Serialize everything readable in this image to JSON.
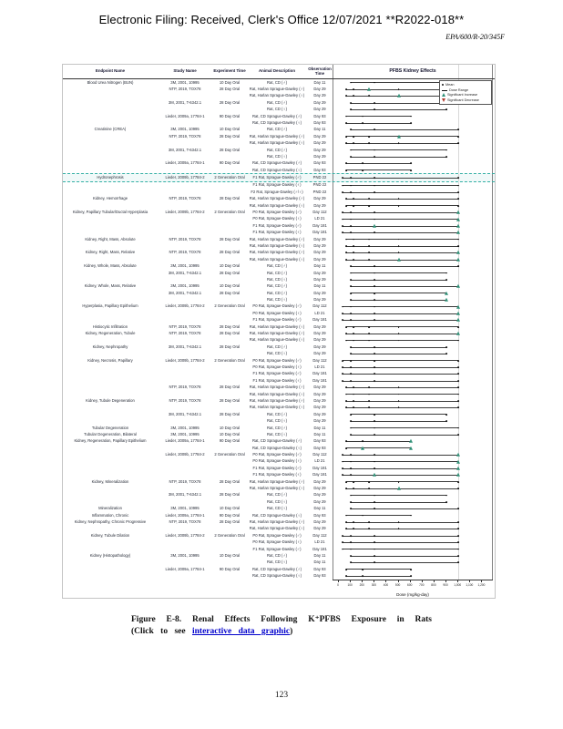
{
  "page": {
    "filing_header": "Electronic Filing: Received, Clerk's Office 12/07/2021 **R2022-018**",
    "doc_id": "EPA/600/R-20/345F",
    "page_number": "123"
  },
  "caption": {
    "line1": "Figure E-8. Renal Effects Following K⁺PFBS Exposure in Rats",
    "prefix": "(Click to see",
    "link_text": "interactive data graphic",
    "suffix": ")"
  },
  "chart_data": {
    "type": "scatter",
    "title": "PFBS Kidney Effects",
    "xlabel": "Dose (mg/kg-day)",
    "xlim": [
      0,
      1250
    ],
    "x_tick_values": [
      0,
      100,
      200,
      300,
      400,
      500,
      600,
      700,
      800,
      900,
      1000,
      1100,
      1200
    ],
    "x_tick_labels": [
      "0",
      "100",
      "200",
      "300",
      "400",
      "500",
      "600",
      "700",
      "800",
      "900",
      "1,000",
      "1,100",
      "1,200"
    ],
    "colors": {
      "increase": "#2f9077",
      "decrease": "#b03a2e",
      "mean": "#111111",
      "highlight": "#35b0a5"
    },
    "legend": [
      {
        "label": "Mean",
        "marker": "dot",
        "color": "#111111"
      },
      {
        "label": "Dose Range",
        "marker": "line",
        "color": "#111111"
      },
      {
        "label": "Significant Increase",
        "marker": "triangle-up",
        "color": "#2f9077"
      },
      {
        "label": "Significant Decrease",
        "marker": "triangle-down",
        "color": "#b03a2e"
      }
    ],
    "columns": [
      "Endpoint Name",
      "Study Name",
      "Experiment Time",
      "Animal Description",
      "Observation Time"
    ],
    "rows": [
      [
        "Blood Urea Nitrogen (BUN)",
        "3M, 2001, 10995",
        "10 Day Oral",
        "Rat, CD (♂)",
        "Day 11",
        [
          100,
          300,
          1000
        ],
        [],
        []
      ],
      [
        "",
        "NTP, 2019, TOX78",
        "28 Day Oral",
        "Rat, Harlan Sprague-Dawley (♂)",
        "Day 29",
        [
          62.6,
          125,
          250,
          500,
          1000
        ],
        [
          250
        ],
        []
      ],
      [
        "",
        "",
        "",
        "Rat, Harlan Sprague-Dawley (♀)",
        "Day 29",
        [
          62.6,
          125,
          250,
          500,
          1000
        ],
        [
          500
        ],
        []
      ],
      [
        "",
        "3M, 2001, T-6342.1",
        "28 Day Oral",
        "Rat, CD (♂)",
        "Day 29",
        [
          100,
          300,
          900
        ],
        [],
        []
      ],
      [
        "",
        "",
        "",
        "Rat, CD (♀)",
        "Day 29",
        [
          100,
          300,
          900
        ],
        [],
        []
      ],
      [
        "",
        "Lieder, 2009a, 17784-1",
        "90 Day Oral",
        "Rat, CD Sprague-Dawley (♂)",
        "Day 93",
        [
          60,
          200,
          600
        ],
        [],
        []
      ],
      [
        "",
        "",
        "",
        "Rat, CD Sprague-Dawley (♀)",
        "Day 93",
        [
          60,
          200,
          600
        ],
        [],
        []
      ],
      [
        "Creatinine (CREA)",
        "3M, 2001, 10995",
        "10 Day Oral",
        "Rat, CD (♂)",
        "Day 11",
        [
          100,
          300,
          1000
        ],
        [],
        []
      ],
      [
        "",
        "NTP, 2019, TOX78",
        "28 Day Oral",
        "Rat, Harlan Sprague-Dawley (♂)",
        "Day 29",
        [
          62.6,
          125,
          250,
          500,
          1000
        ],
        [
          500
        ],
        []
      ],
      [
        "",
        "",
        "",
        "Rat, Harlan Sprague-Dawley (♀)",
        "Day 29",
        [
          62.6,
          125,
          250,
          500,
          1000
        ],
        [],
        []
      ],
      [
        "",
        "3M, 2001, T-6342.1",
        "28 Day Oral",
        "Rat, CD (♂)",
        "Day 29",
        [
          100,
          300,
          900
        ],
        [],
        []
      ],
      [
        "",
        "",
        "",
        "Rat, CD (♀)",
        "Day 29",
        [
          100,
          300,
          900
        ],
        [],
        []
      ],
      [
        "",
        "Lieder, 2009a, 17784-1",
        "90 Day Oral",
        "Rat, CD Sprague-Dawley (♂)",
        "Day 93",
        [
          60,
          200,
          600
        ],
        [],
        []
      ],
      [
        "",
        "",
        "",
        "Rat, CD Sprague-Dawley (♀)",
        "Day 93",
        [
          60,
          200,
          600
        ],
        [],
        []
      ],
      [
        "Hydronephrosis",
        "Lieder, 2009b, 17784-2",
        "2 Generation Oral",
        "F1 Rat, Sprague-Dawley (♂)",
        "PND 22",
        [
          30,
          100,
          300,
          1000
        ],
        [],
        [],
        1
      ],
      [
        "",
        "",
        "",
        "F1 Rat, Sprague-Dawley (♀)",
        "PND 22",
        [
          30,
          100,
          300,
          1000
        ],
        [],
        []
      ],
      [
        "",
        "",
        "",
        "F2 Rat, Sprague-Dawley (♂/♀)",
        "PND 22",
        [
          30,
          100,
          300,
          1000
        ],
        [],
        []
      ],
      [
        "Kidney, Hemorrhage",
        "NTP, 2019, TOX78",
        "28 Day Oral",
        "Rat, Harlan Sprague-Dawley (♂)",
        "Day 29",
        [
          62.6,
          125,
          250,
          500,
          1000
        ],
        [],
        []
      ],
      [
        "",
        "",
        "",
        "Rat, Harlan Sprague-Dawley (♀)",
        "Day 29",
        [
          62.6,
          125,
          250,
          500,
          1000
        ],
        [],
        []
      ],
      [
        "Kidney, Papillary Tubular/Ductal Hyperplasia",
        "Lieder, 2009b, 17784-2",
        "2 Generation Oral",
        "P0 Rat, Sprague-Dawley (♂)",
        "Day 112",
        [
          30,
          100,
          300,
          1000
        ],
        [
          1000
        ],
        []
      ],
      [
        "",
        "",
        "",
        "P0 Rat, Sprague-Dawley (♀)",
        "LD 21",
        [
          30,
          100,
          300,
          1000
        ],
        [
          1000
        ],
        []
      ],
      [
        "",
        "",
        "",
        "F1 Rat, Sprague-Dawley (♂)",
        "Day 181",
        [
          30,
          100,
          300,
          1000
        ],
        [
          300,
          1000
        ],
        []
      ],
      [
        "",
        "",
        "",
        "F1 Rat, Sprague-Dawley (♀)",
        "Day 181",
        [
          30,
          100,
          300,
          1000
        ],
        [
          1000
        ],
        []
      ],
      [
        "Kidney, Right, Mass, Absolute",
        "NTP, 2019, TOX78",
        "28 Day Oral",
        "Rat, Harlan Sprague-Dawley (♂)",
        "Day 29",
        [
          62.6,
          125,
          250,
          500,
          1000
        ],
        [],
        []
      ],
      [
        "",
        "",
        "",
        "Rat, Harlan Sprague-Dawley (♀)",
        "Day 29",
        [
          62.6,
          125,
          250,
          500,
          1000
        ],
        [],
        []
      ],
      [
        "Kidney, Right, Mass, Relative",
        "NTP, 2019, TOX78",
        "28 Day Oral",
        "Rat, Harlan Sprague-Dawley (♂)",
        "Day 29",
        [
          62.6,
          125,
          250,
          500,
          1000
        ],
        [
          1000
        ],
        []
      ],
      [
        "",
        "",
        "",
        "Rat, Harlan Sprague-Dawley (♀)",
        "Day 29",
        [
          62.6,
          125,
          250,
          500,
          1000
        ],
        [
          500,
          1000
        ],
        []
      ],
      [
        "Kidney, Whole, Mass, Absolute",
        "3M, 2001, 10995",
        "10 Day Oral",
        "Rat, CD (♂)",
        "Day 11",
        [
          100,
          300,
          1000
        ],
        [],
        []
      ],
      [
        "",
        "3M, 2001, T-6342.1",
        "28 Day Oral",
        "Rat, CD (♂)",
        "Day 29",
        [
          100,
          300,
          900
        ],
        [],
        []
      ],
      [
        "",
        "",
        "",
        "Rat, CD (♀)",
        "Day 29",
        [
          100,
          300,
          900
        ],
        [],
        []
      ],
      [
        "Kidney, Whole, Mass, Relative",
        "3M, 2001, 10995",
        "10 Day Oral",
        "Rat, CD (♂)",
        "Day 11",
        [
          100,
          300,
          1000
        ],
        [
          1000
        ],
        []
      ],
      [
        "",
        "3M, 2001, T-6342.1",
        "28 Day Oral",
        "Rat, CD (♂)",
        "Day 29",
        [
          100,
          300,
          900
        ],
        [
          900
        ],
        []
      ],
      [
        "",
        "",
        "",
        "Rat, CD (♀)",
        "Day 29",
        [
          100,
          300,
          900
        ],
        [
          900
        ],
        []
      ],
      [
        "Hyperplasia, Papillary Epithelium",
        "Lieder, 2009b, 17784-2",
        "2 Generation Oral",
        "P0 Rat, Sprague-Dawley (♂)",
        "Day 112",
        [
          30,
          100,
          300,
          1000
        ],
        [
          1000
        ],
        []
      ],
      [
        "",
        "",
        "",
        "P0 Rat, Sprague-Dawley (♀)",
        "LD 21",
        [
          30,
          100,
          300,
          1000
        ],
        [
          1000
        ],
        []
      ],
      [
        "",
        "",
        "",
        "F1 Rat, Sprague-Dawley (♂)",
        "Day 181",
        [
          30,
          100,
          300,
          1000
        ],
        [
          1000
        ],
        []
      ],
      [
        "Histiocytic Infiltration",
        "NTP, 2019, TOX78",
        "28 Day Oral",
        "Rat, Harlan Sprague-Dawley (♀)",
        "Day 29",
        [
          62.6,
          125,
          250,
          500,
          1000
        ],
        [],
        []
      ],
      [
        "Kidney, Regeneration, Tubule",
        "NTP, 2019, TOX78",
        "28 Day Oral",
        "Rat, Harlan Sprague-Dawley (♂)",
        "Day 29",
        [
          62.6,
          125,
          250,
          500,
          1000
        ],
        [
          1000
        ],
        []
      ],
      [
        "",
        "",
        "",
        "Rat, Harlan Sprague-Dawley (♀)",
        "Day 29",
        [
          62.6,
          125,
          250,
          500,
          1000
        ],
        [],
        []
      ],
      [
        "Kidney, Nephropathy",
        "3M, 2001, T-6342.1",
        "28 Day Oral",
        "Rat, CD (♂)",
        "Day 29",
        [
          100,
          300,
          900
        ],
        [],
        []
      ],
      [
        "",
        "",
        "",
        "Rat, CD (♀)",
        "Day 29",
        [
          100,
          300,
          900
        ],
        [],
        []
      ],
      [
        "Kidney, Necrosis, Papillary",
        "Lieder, 2009b, 17784-2",
        "2 Generation Oral",
        "P0 Rat, Sprague-Dawley (♂)",
        "Day 112",
        [
          30,
          100,
          300,
          1000
        ],
        [],
        []
      ],
      [
        "",
        "",
        "",
        "P0 Rat, Sprague-Dawley (♀)",
        "LD 21",
        [
          30,
          100,
          300,
          1000
        ],
        [],
        []
      ],
      [
        "",
        "",
        "",
        "F1 Rat, Sprague-Dawley (♂)",
        "Day 181",
        [
          30,
          100,
          300,
          1000
        ],
        [],
        []
      ],
      [
        "",
        "",
        "",
        "F1 Rat, Sprague-Dawley (♀)",
        "Day 181",
        [
          30,
          100,
          300,
          1000
        ],
        [],
        []
      ],
      [
        "",
        "NTP, 2019, TOX78",
        "28 Day Oral",
        "Rat, Harlan Sprague-Dawley (♂)",
        "Day 29",
        [
          62.6,
          125,
          250,
          500,
          1000
        ],
        [],
        []
      ],
      [
        "",
        "",
        "",
        "Rat, Harlan Sprague-Dawley (♀)",
        "Day 29",
        [
          62.6,
          125,
          250,
          500,
          1000
        ],
        [],
        []
      ],
      [
        "Kidney, Tubule Degeneration",
        "NTP, 2019, TOX78",
        "28 Day Oral",
        "Rat, Harlan Sprague-Dawley (♂)",
        "Day 29",
        [
          62.6,
          125,
          250,
          500,
          1000
        ],
        [],
        []
      ],
      [
        "",
        "",
        "",
        "Rat, Harlan Sprague-Dawley (♀)",
        "Day 29",
        [
          62.6,
          125,
          250,
          500,
          1000
        ],
        [],
        []
      ],
      [
        "",
        "3M, 2001, T-6342.1",
        "28 Day Oral",
        "Rat, CD (♂)",
        "Day 29",
        [
          100,
          300,
          900
        ],
        [],
        []
      ],
      [
        "",
        "",
        "",
        "Rat, CD (♀)",
        "Day 29",
        [
          100,
          300,
          900
        ],
        [],
        []
      ],
      [
        "Tubular Degeneration",
        "3M, 2001, 10995",
        "10 Day Oral",
        "Rat, CD (♂)",
        "Day 11",
        [
          100,
          300,
          1000
        ],
        [],
        []
      ],
      [
        "Tubular Degeneration, Bilateral",
        "3M, 2001, 10995",
        "10 Day Oral",
        "Rat, CD (♀)",
        "Day 11",
        [
          100,
          300,
          1000
        ],
        [],
        []
      ],
      [
        "Kidney, Regeneration, Papillary Epithelium",
        "Lieder, 2009a, 17784-1",
        "90 Day Oral",
        "Rat, CD Sprague-Dawley (♂)",
        "Day 93",
        [
          60,
          200,
          600
        ],
        [
          600
        ],
        []
      ],
      [
        "",
        "",
        "",
        "Rat, CD Sprague-Dawley (♀)",
        "Day 93",
        [
          60,
          200,
          600
        ],
        [
          200,
          600
        ],
        []
      ],
      [
        "",
        "Lieder, 2009b, 17784-2",
        "2 Generation Oral",
        "P0 Rat, Sprague-Dawley (♂)",
        "Day 112",
        [
          30,
          100,
          300,
          1000
        ],
        [
          1000
        ],
        []
      ],
      [
        "",
        "",
        "",
        "P0 Rat, Sprague-Dawley (♀)",
        "LD 21",
        [
          30,
          100,
          300,
          1000
        ],
        [
          1000
        ],
        []
      ],
      [
        "",
        "",
        "",
        "F1 Rat, Sprague-Dawley (♂)",
        "Day 181",
        [
          30,
          100,
          300,
          1000
        ],
        [
          1000
        ],
        []
      ],
      [
        "",
        "",
        "",
        "F1 Rat, Sprague-Dawley (♀)",
        "Day 181",
        [
          30,
          100,
          300,
          1000
        ],
        [
          300,
          1000
        ],
        []
      ],
      [
        "Kidney, Mineralization",
        "NTP, 2019, TOX78",
        "28 Day Oral",
        "Rat, Harlan Sprague-Dawley (♂)",
        "Day 29",
        [
          62.6,
          125,
          250,
          500,
          1000
        ],
        [],
        []
      ],
      [
        "",
        "",
        "",
        "Rat, Harlan Sprague-Dawley (♀)",
        "Day 29",
        [
          62.6,
          125,
          250,
          500,
          1000
        ],
        [
          500
        ],
        []
      ],
      [
        "",
        "3M, 2001, T-6342.1",
        "28 Day Oral",
        "Rat, CD (♂)",
        "Day 29",
        [
          100,
          300,
          900
        ],
        [],
        []
      ],
      [
        "",
        "",
        "",
        "Rat, CD (♀)",
        "Day 29",
        [
          100,
          300,
          900
        ],
        [],
        []
      ],
      [
        "Mineralization",
        "3M, 2001, 10995",
        "10 Day Oral",
        "Rat, CD (♀)",
        "Day 11",
        [
          100,
          300,
          1000
        ],
        [],
        []
      ],
      [
        "Inflammation, Chronic",
        "Lieder, 2009a, 17784-1",
        "90 Day Oral",
        "Rat, CD Sprague-Dawley (♀)",
        "Day 93",
        [
          60,
          200,
          600
        ],
        [],
        []
      ],
      [
        "Kidney, Nephropathy, Chronic Progressive",
        "NTP, 2019, TOX78",
        "28 Day Oral",
        "Rat, Harlan Sprague-Dawley (♂)",
        "Day 29",
        [
          62.6,
          125,
          250,
          500,
          1000
        ],
        [],
        []
      ],
      [
        "",
        "",
        "",
        "Rat, Harlan Sprague-Dawley (♀)",
        "Day 29",
        [
          62.6,
          125,
          250,
          500,
          1000
        ],
        [],
        []
      ],
      [
        "Kidney, Tubule Dilation",
        "Lieder, 2009b, 17784-2",
        "2 Generation Oral",
        "P0 Rat, Sprague-Dawley (♂)",
        "Day 112",
        [
          30,
          100,
          300,
          1000
        ],
        [],
        []
      ],
      [
        "",
        "",
        "",
        "P0 Rat, Sprague-Dawley (♀)",
        "LD 21",
        [
          30,
          100,
          300,
          1000
        ],
        [],
        []
      ],
      [
        "",
        "",
        "",
        "F1 Rat, Sprague-Dawley (♂)",
        "Day 181",
        [
          30,
          100,
          300,
          1000
        ],
        [],
        []
      ],
      [
        "Kidney (Histopathology)",
        "3M, 2001, 10995",
        "10 Day Oral",
        "Rat, CD (♂)",
        "Day 11",
        [
          100,
          300,
          1000
        ],
        [],
        []
      ],
      [
        "",
        "",
        "",
        "Rat, CD (♀)",
        "Day 11",
        [
          100,
          300,
          1000
        ],
        [],
        []
      ],
      [
        "",
        "Lieder, 2009a, 17784-1",
        "90 Day Oral",
        "Rat, CD Sprague-Dawley (♂)",
        "Day 93",
        [
          60,
          200,
          600
        ],
        [],
        []
      ],
      [
        "",
        "",
        "",
        "Rat, CD Sprague-Dawley (♀)",
        "Day 93",
        [
          60,
          200,
          600
        ],
        [],
        []
      ]
    ]
  }
}
